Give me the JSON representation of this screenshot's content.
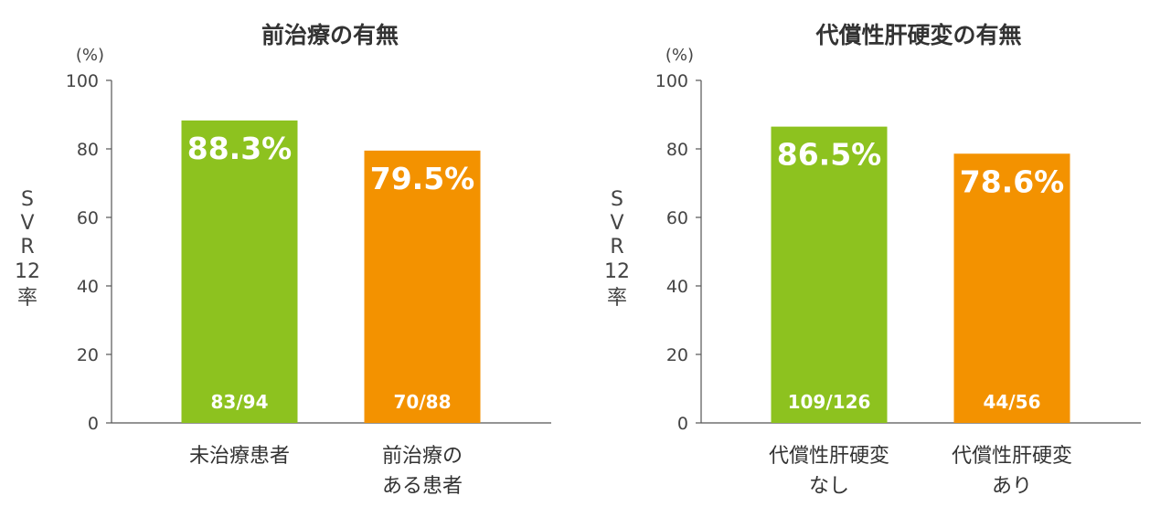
{
  "chart_data": [
    {
      "type": "bar",
      "title": "前治療の有無",
      "ylabel": "SVR12率",
      "unit_label": "(%)",
      "ylim": [
        0,
        100
      ],
      "yticks": [
        "0",
        "20",
        "40",
        "60",
        "80",
        "100"
      ],
      "categories": [
        [
          "未治療患者"
        ],
        [
          "前治療の",
          "ある患者"
        ]
      ],
      "values": [
        88.3,
        79.5
      ],
      "value_labels": [
        "88.3%",
        "79.5%"
      ],
      "count_labels": [
        "83/94",
        "70/88"
      ],
      "colors": [
        "#8DC21F",
        "#F39200"
      ]
    },
    {
      "type": "bar",
      "title": "代償性肝硬変の有無",
      "ylabel": "SVR12率",
      "unit_label": "(%)",
      "ylim": [
        0,
        100
      ],
      "yticks": [
        "0",
        "20",
        "40",
        "60",
        "80",
        "100"
      ],
      "categories": [
        [
          "代償性肝硬変",
          "なし"
        ],
        [
          "代償性肝硬変",
          "あり"
        ]
      ],
      "values": [
        86.5,
        78.6
      ],
      "value_labels": [
        "86.5%",
        "78.6%"
      ],
      "count_labels": [
        "109/126",
        "44/56"
      ],
      "colors": [
        "#8DC21F",
        "#F39200"
      ]
    }
  ]
}
